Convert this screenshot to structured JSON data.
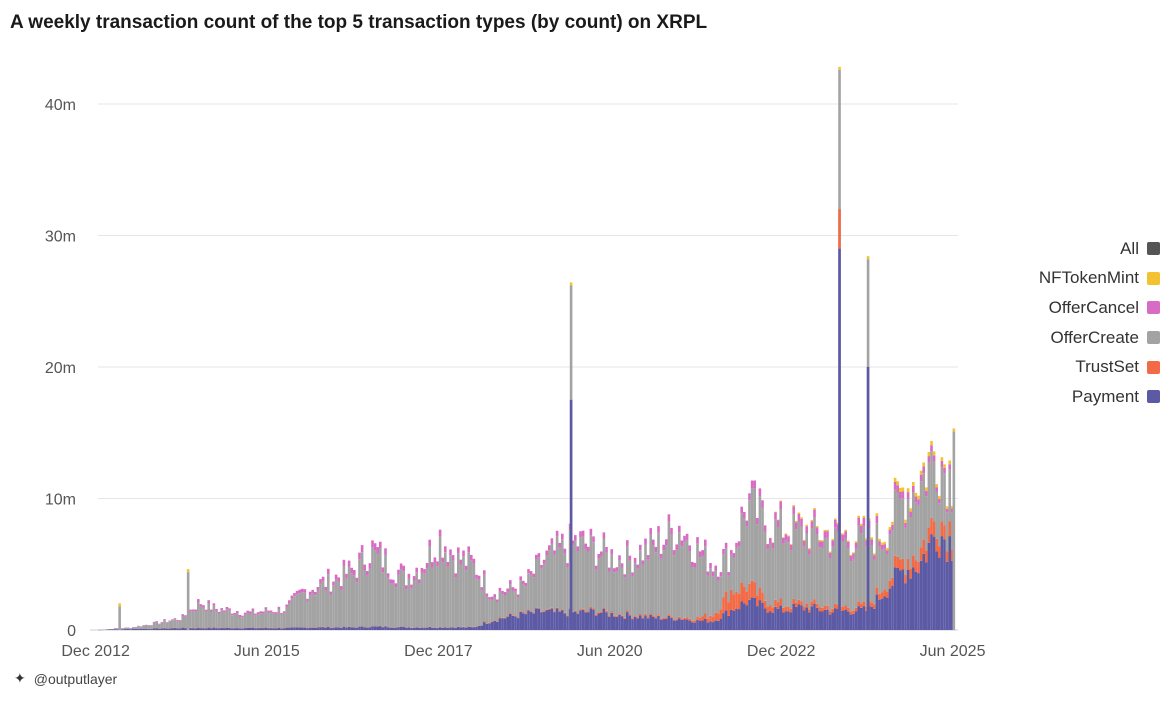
{
  "title": "A weekly transaction count of the top 5 transaction types (by count) on XRPL",
  "credit": "@outputlayer",
  "colors": {
    "All": "#555555",
    "NFTokenMint": "#f2c230",
    "OfferCancel": "#d86cc4",
    "OfferCreate": "#a3a3a3",
    "TrustSet": "#f26b46",
    "Payment": "#5c5aa5"
  },
  "chart_data": {
    "type": "bar",
    "stacked": true,
    "title": "A weekly transaction count of the top 5 transaction types (by count) on XRPL",
    "xlabel": "",
    "ylabel": "",
    "x_range": [
      "2012-11-01",
      "2025-06-30"
    ],
    "ylim": [
      0,
      42000000
    ],
    "y_ticks": [
      0,
      10000000,
      20000000,
      30000000,
      40000000
    ],
    "y_tick_labels": [
      "0",
      "10m",
      "20m",
      "30m",
      "40m"
    ],
    "x_ticks": [
      "2012-12-01",
      "2015-06-01",
      "2017-12-01",
      "2020-06-01",
      "2022-12-01",
      "2025-06-01"
    ],
    "x_tick_labels": [
      "Dec 2012",
      "Jun 2015",
      "Dec 2017",
      "Jun 2020",
      "Dec 2022",
      "Jun 2025"
    ],
    "grid": true,
    "legend_position": "right",
    "legend": [
      "All",
      "NFTokenMint",
      "OfferCancel",
      "OfferCreate",
      "TrustSet",
      "Payment"
    ],
    "x": [
      "2012-12",
      "2013-03",
      "2013-06",
      "2013-09",
      "2013-12",
      "2014-03",
      "2014-06",
      "2014-09",
      "2014-12",
      "2015-03",
      "2015-06",
      "2015-09",
      "2015-12",
      "2016-03",
      "2016-06",
      "2016-09",
      "2016-12",
      "2017-03",
      "2017-06",
      "2017-09",
      "2017-12",
      "2018-03",
      "2018-06",
      "2018-09",
      "2018-12",
      "2019-03",
      "2019-06",
      "2019-09",
      "2019-12",
      "2020-03",
      "2020-06",
      "2020-09",
      "2020-12",
      "2021-03",
      "2021-06",
      "2021-09",
      "2021-12",
      "2022-03",
      "2022-06",
      "2022-09",
      "2022-12",
      "2023-03",
      "2023-06",
      "2023-09",
      "2023-12",
      "2024-03",
      "2024-06",
      "2024-09",
      "2024-12",
      "2025-03",
      "2025-06"
    ],
    "series": [
      {
        "name": "Payment",
        "values": [
          0,
          50000,
          80000,
          100000,
          120000,
          150000,
          150000,
          150000,
          150000,
          150000,
          150000,
          150000,
          180000,
          200000,
          200000,
          200000,
          250000,
          250000,
          200000,
          200000,
          200000,
          200000,
          200000,
          700000,
          1000000,
          1200000,
          1400000,
          1300000,
          1300000,
          1400000,
          1200000,
          1100000,
          1000000,
          900000,
          900000,
          700000,
          700000,
          1500000,
          2200000,
          1700000,
          1500000,
          1700000,
          1600000,
          1400000,
          1500000,
          1500000,
          3000000,
          4500000,
          5000000,
          7500000,
          6500000
        ]
      },
      {
        "name": "TrustSet",
        "values": [
          0,
          0,
          0,
          0,
          10000,
          10000,
          10000,
          10000,
          10000,
          10000,
          10000,
          10000,
          10000,
          10000,
          10000,
          10000,
          10000,
          20000,
          20000,
          20000,
          20000,
          20000,
          20000,
          50000,
          50000,
          50000,
          50000,
          50000,
          50000,
          100000,
          100000,
          100000,
          100000,
          100000,
          100000,
          200000,
          500000,
          1500000,
          1200000,
          600000,
          400000,
          300000,
          300000,
          300000,
          300000,
          300000,
          600000,
          800000,
          1000000,
          1200000,
          1000000
        ]
      },
      {
        "name": "OfferCreate",
        "values": [
          0,
          50000,
          100000,
          300000,
          500000,
          700000,
          1800000,
          1300000,
          1200000,
          1000000,
          1200000,
          1300000,
          2500000,
          3000000,
          3500000,
          4000000,
          5500000,
          4500000,
          3500000,
          4500000,
          6500000,
          5000000,
          4500000,
          2000000,
          1800000,
          2000000,
          3500000,
          4500000,
          5000000,
          4500000,
          4000000,
          4000000,
          4700000,
          5500000,
          6500000,
          5000000,
          3500000,
          2500000,
          6000000,
          5500000,
          5500000,
          5200000,
          5000000,
          5000000,
          4800000,
          4700000,
          3500000,
          4500000,
          5000000,
          4500000,
          3500000
        ]
      },
      {
        "name": "OfferCancel",
        "values": [
          0,
          0,
          10000,
          30000,
          50000,
          80000,
          200000,
          150000,
          150000,
          150000,
          150000,
          150000,
          250000,
          300000,
          350000,
          400000,
          500000,
          400000,
          350000,
          400000,
          500000,
          400000,
          350000,
          250000,
          250000,
          250000,
          300000,
          350000,
          400000,
          400000,
          350000,
          350000,
          400000,
          450000,
          500000,
          450000,
          400000,
          350000,
          500000,
          500000,
          500000,
          500000,
          500000,
          500000,
          500000,
          500000,
          400000,
          500000,
          500000,
          450000,
          350000
        ]
      },
      {
        "name": "NFTokenMint",
        "values": [
          0,
          0,
          0,
          0,
          0,
          0,
          0,
          0,
          0,
          0,
          0,
          0,
          0,
          0,
          0,
          0,
          0,
          0,
          0,
          0,
          0,
          0,
          0,
          0,
          0,
          0,
          0,
          0,
          0,
          0,
          0,
          0,
          0,
          0,
          0,
          0,
          0,
          0,
          0,
          0,
          50000,
          100000,
          100000,
          100000,
          100000,
          150000,
          200000,
          300000,
          300000,
          300000,
          250000
        ]
      },
      {
        "name": "All",
        "values": [
          0,
          100000,
          190000,
          430000,
          680000,
          940000,
          2160000,
          1610000,
          1510000,
          1310000,
          1510000,
          1610000,
          2940000,
          3510000,
          4060000,
          4610000,
          6260000,
          5170000,
          4070000,
          5120000,
          7220000,
          5620000,
          5070000,
          3000000,
          3100000,
          3500000,
          5250000,
          6200000,
          6750000,
          6400000,
          5650000,
          5550000,
          6200000,
          6950000,
          8000000,
          6350000,
          5100000,
          5850000,
          9900000,
          8300000,
          7950000,
          7800000,
          7500000,
          7300000,
          7200000,
          7150000,
          7700000,
          10600000,
          11800000,
          13950000,
          11600000
        ]
      }
    ],
    "spikes": [
      {
        "x": "2013-04",
        "total": 1800000
      },
      {
        "x": "2014-04",
        "total": 4400000
      },
      {
        "x": "2019-11",
        "total": 26200000,
        "payment": 17500000
      },
      {
        "x": "2023-10",
        "total": 42600000,
        "payment": 29000000,
        "trustset": 3000000
      },
      {
        "x": "2024-03",
        "total": 28200000,
        "payment": 20000000
      },
      {
        "x": "2025-06",
        "total": 15100000
      }
    ]
  }
}
